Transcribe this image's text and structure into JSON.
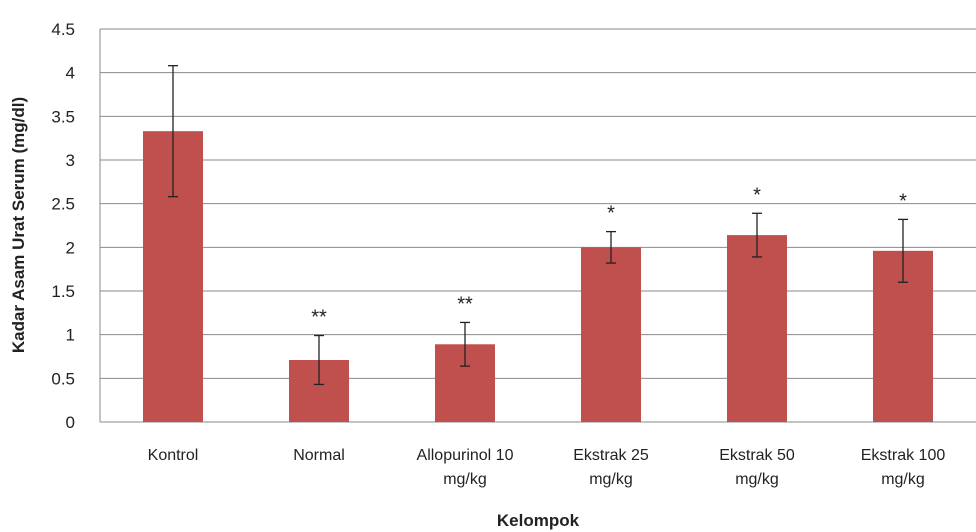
{
  "chart_data": {
    "type": "bar",
    "xlabel": "Kelompok",
    "ylabel": "Kadar Asam Urat Serum (mg/dl)",
    "ylim": [
      0,
      4.5
    ],
    "yticks": [
      0,
      0.5,
      1,
      1.5,
      2,
      2.5,
      3,
      3.5,
      4,
      4.5
    ],
    "ytick_labels": [
      "0",
      "0.5",
      "1",
      "1.5",
      "2",
      "2.5",
      "3",
      "3.5",
      "4",
      "4.5"
    ],
    "grid": true,
    "color": "#c0504d",
    "categories": [
      [
        "Kontrol"
      ],
      [
        "Normal"
      ],
      [
        "Allopurinol 10",
        "mg/kg"
      ],
      [
        "Ekstrak 25",
        "mg/kg"
      ],
      [
        "Ekstrak 50",
        "mg/kg"
      ],
      [
        "Ekstrak 100",
        "mg/kg"
      ]
    ],
    "values": [
      3.33,
      0.71,
      0.89,
      2.0,
      2.14,
      1.96
    ],
    "errors": [
      0.75,
      0.28,
      0.25,
      0.18,
      0.25,
      0.36
    ],
    "annotations": [
      "",
      "**",
      "**",
      "*",
      "*",
      "*"
    ]
  }
}
